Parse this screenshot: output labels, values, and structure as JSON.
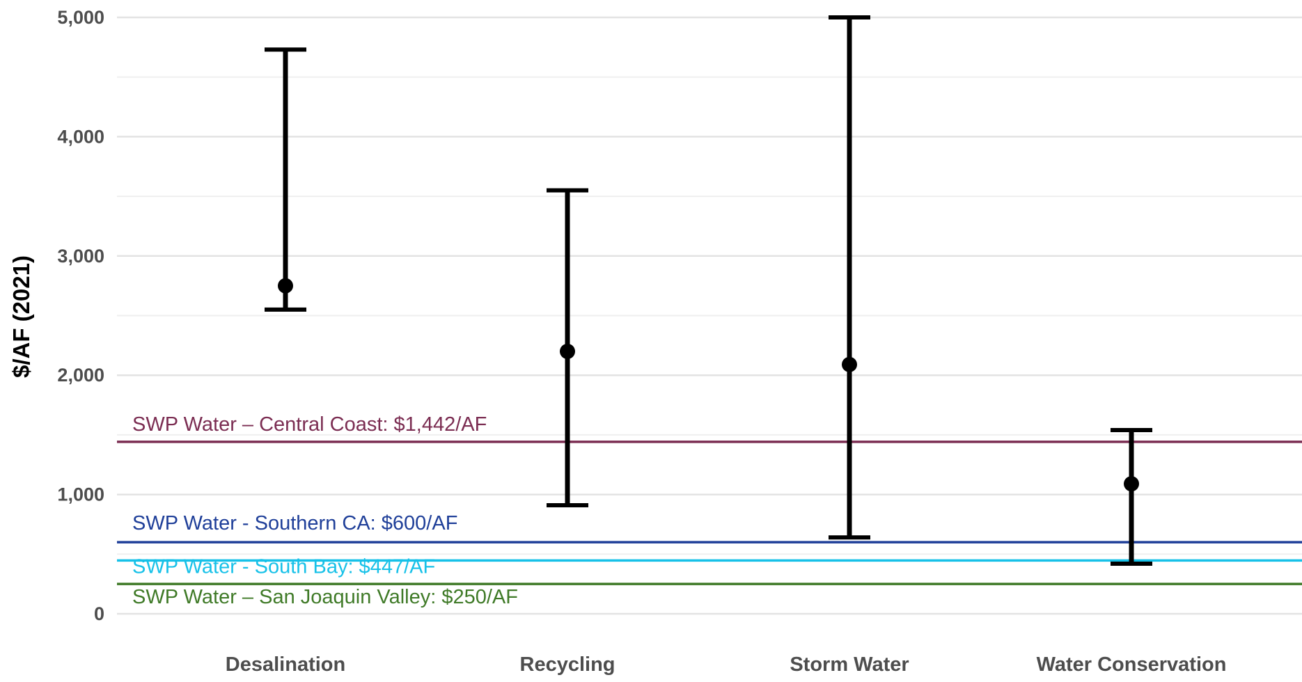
{
  "chart_data": {
    "type": "errorbar",
    "title": "",
    "xlabel": "",
    "ylabel": "$/AF (2021)",
    "ylim": [
      0,
      5000
    ],
    "yticks": [
      0,
      1000,
      2000,
      3000,
      4000,
      5000
    ],
    "ytick_labels": [
      "0",
      "1,000",
      "2,000",
      "3,000",
      "4,000",
      "5,000"
    ],
    "grid": "horizontal",
    "categories": [
      "Desalination",
      "Recycling",
      "Storm Water",
      "Water Conservation"
    ],
    "points": [
      {
        "category": "Desalination",
        "value": 2750,
        "low": 2550,
        "high": 4730
      },
      {
        "category": "Recycling",
        "value": 2200,
        "low": 910,
        "high": 3550
      },
      {
        "category": "Storm Water",
        "value": 2090,
        "low": 640,
        "high": 5000
      },
      {
        "category": "Water Conservation",
        "value": 1090,
        "low": 420,
        "high": 1540
      }
    ],
    "reference_lines": [
      {
        "label": "SWP Water – Central Coast: $1,442/AF",
        "value": 1442,
        "color": "#7b2d52"
      },
      {
        "label": "SWP Water - Southern CA: $600/AF",
        "value": 600,
        "color": "#1f3f99"
      },
      {
        "label": "SWP Water - South Bay: $447/AF",
        "value": 447,
        "color": "#17c1e8"
      },
      {
        "label": "SWP Water – San Joaquin Valley: $250/AF",
        "value": 250,
        "color": "#3f7a27"
      }
    ]
  }
}
